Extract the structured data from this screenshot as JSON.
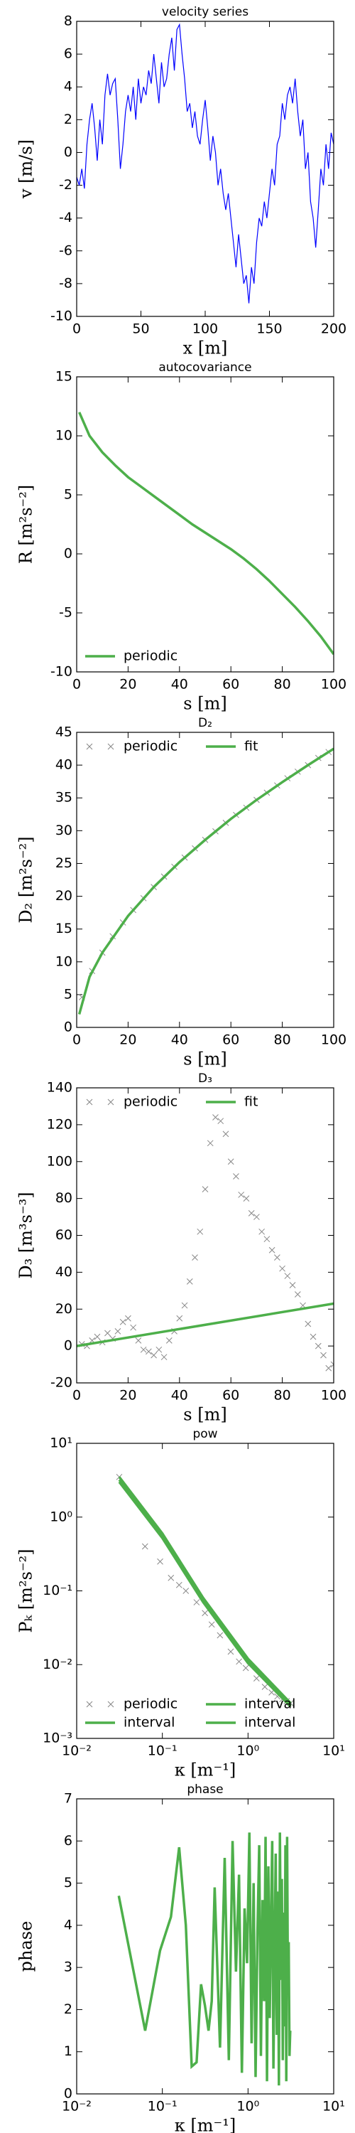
{
  "chart_data": [
    {
      "type": "line",
      "title": "velocity series",
      "xlabel": "x [m]",
      "ylabel": "v [m/s]",
      "xlim": [
        0,
        200
      ],
      "xticks": [
        0,
        50,
        100,
        150,
        200
      ],
      "ylim": [
        -10,
        8
      ],
      "yticks": [
        -10,
        -8,
        -6,
        -4,
        -2,
        0,
        2,
        4,
        6,
        8
      ],
      "series": [
        {
          "color": "#0000ff",
          "x": [
            0,
            2,
            4,
            6,
            8,
            10,
            12,
            14,
            16,
            18,
            20,
            22,
            24,
            26,
            28,
            30,
            32,
            34,
            36,
            38,
            40,
            42,
            44,
            46,
            48,
            50,
            52,
            54,
            56,
            58,
            60,
            62,
            64,
            66,
            68,
            70,
            72,
            74,
            76,
            78,
            80,
            82,
            84,
            86,
            88,
            90,
            92,
            94,
            96,
            98,
            100,
            102,
            104,
            106,
            108,
            110,
            112,
            114,
            116,
            118,
            120,
            122,
            124,
            126,
            128,
            130,
            132,
            134,
            136,
            138,
            140,
            142,
            144,
            146,
            148,
            150,
            152,
            154,
            156,
            158,
            160,
            162,
            164,
            166,
            168,
            170,
            172,
            174,
            176,
            178,
            180,
            182,
            184,
            186,
            188,
            190,
            192,
            194,
            196,
            198,
            200
          ],
          "values": [
            -1.5,
            -2,
            -1,
            -2.2,
            0.5,
            2,
            3,
            1.5,
            -0.5,
            2,
            0.5,
            3.5,
            4.8,
            3.5,
            4.2,
            4.5,
            2,
            -1,
            0.5,
            2.5,
            3.5,
            2.5,
            4,
            2,
            4.5,
            3,
            4,
            3.5,
            5,
            4.2,
            6,
            4.5,
            3,
            5.5,
            4,
            4.5,
            6,
            7,
            5,
            7.5,
            7.8,
            6,
            4.5,
            2.5,
            3,
            1.5,
            2.5,
            1,
            0.5,
            2,
            3.2,
            1.5,
            -0.5,
            1,
            0,
            -2,
            -1,
            -2.5,
            -3.5,
            -2.5,
            -4,
            -5.5,
            -7,
            -5,
            -6.5,
            -8,
            -7.5,
            -9.2,
            -7,
            -8,
            -5.5,
            -4,
            -4.5,
            -3,
            -4,
            -2.5,
            -1,
            -2,
            0.5,
            1,
            3,
            2,
            3.5,
            4,
            3,
            4.5,
            2.5,
            1,
            2,
            -1,
            0,
            -3,
            -4,
            -5.8,
            -3.5,
            -1,
            -2,
            0.5,
            -1,
            1.2,
            0.5
          ]
        }
      ]
    },
    {
      "type": "line",
      "title": "autocovariance",
      "xlabel": "s [m]",
      "ylabel": "R [m²s⁻²]",
      "xlim": [
        0,
        100
      ],
      "xticks": [
        0,
        20,
        40,
        60,
        80,
        100
      ],
      "ylim": [
        -10,
        15
      ],
      "yticks": [
        -10,
        -5,
        0,
        5,
        10,
        15
      ],
      "legend": "lower left",
      "legend_columns": 1,
      "series": [
        {
          "name": "periodic",
          "color": "#4daf4a",
          "x": [
            1,
            5,
            10,
            15,
            20,
            25,
            30,
            35,
            40,
            45,
            50,
            55,
            60,
            65,
            70,
            75,
            80,
            85,
            90,
            95,
            100
          ],
          "values": [
            12,
            10,
            8.6,
            7.5,
            6.5,
            5.7,
            4.9,
            4.1,
            3.3,
            2.5,
            1.8,
            1.1,
            0.4,
            -0.4,
            -1.3,
            -2.3,
            -3.4,
            -4.5,
            -5.7,
            -7,
            -8.5
          ]
        }
      ]
    },
    {
      "type": "line",
      "title": "D₂",
      "xlabel": "s [m]",
      "ylabel": "D₂ [m²s⁻²]",
      "xlim": [
        0,
        100
      ],
      "xticks": [
        0,
        20,
        40,
        60,
        80,
        100
      ],
      "ylim": [
        0,
        45
      ],
      "yticks": [
        0,
        5,
        10,
        15,
        20,
        25,
        30,
        35,
        40,
        45
      ],
      "legend": "upper center",
      "legend_columns": 2,
      "series": [
        {
          "name": "periodic",
          "color": "#888888",
          "marker": "x",
          "x": [
            2,
            6,
            10,
            14,
            18,
            22,
            26,
            30,
            34,
            38,
            42,
            46,
            50,
            54,
            58,
            62,
            66,
            70,
            74,
            78,
            82,
            86,
            90,
            94,
            98
          ],
          "values": [
            4.6,
            8.6,
            11.4,
            13.9,
            16,
            17.9,
            19.7,
            21.4,
            23,
            24.5,
            25.9,
            27.3,
            28.6,
            29.9,
            31.2,
            32.4,
            33.5,
            34.7,
            35.8,
            36.9,
            38,
            39,
            40,
            41.1,
            42
          ]
        },
        {
          "name": "fit",
          "color": "#4daf4a",
          "x": [
            1,
            5,
            10,
            20,
            30,
            40,
            50,
            60,
            70,
            80,
            90,
            100
          ],
          "values": [
            2,
            7.7,
            11.4,
            17,
            21.4,
            25.2,
            28.6,
            31.8,
            34.7,
            37.4,
            40,
            42.5
          ]
        }
      ]
    },
    {
      "type": "line",
      "title": "D₃",
      "xlabel": "s [m]",
      "ylabel": "D₃ [m³s⁻³]",
      "xlim": [
        0,
        100
      ],
      "xticks": [
        0,
        20,
        40,
        60,
        80,
        100
      ],
      "ylim": [
        -20,
        140
      ],
      "yticks": [
        -20,
        0,
        20,
        40,
        60,
        80,
        100,
        120,
        140
      ],
      "legend": "upper center",
      "legend_columns": 2,
      "series": [
        {
          "name": "periodic",
          "color": "#888888",
          "marker": "x",
          "x": [
            2,
            4,
            6,
            8,
            10,
            12,
            14,
            16,
            18,
            20,
            22,
            24,
            26,
            28,
            30,
            32,
            34,
            36,
            38,
            40,
            42,
            44,
            46,
            48,
            50,
            52,
            54,
            56,
            58,
            60,
            62,
            64,
            66,
            68,
            70,
            72,
            74,
            76,
            78,
            80,
            82,
            84,
            86,
            88,
            90,
            92,
            94,
            96,
            98,
            100
          ],
          "values": [
            1,
            0,
            3,
            5,
            2,
            7,
            4,
            8,
            13,
            15,
            10,
            3,
            -2,
            -3,
            -5,
            -2,
            -6,
            3,
            8,
            15,
            22,
            35,
            48,
            62,
            85,
            110,
            124,
            122,
            115,
            100,
            92,
            82,
            80,
            72,
            70,
            62,
            58,
            52,
            48,
            42,
            38,
            33,
            28,
            22,
            12,
            5,
            0,
            -5,
            -12,
            -10
          ]
        },
        {
          "name": "fit",
          "color": "#4daf4a",
          "x": [
            0,
            100
          ],
          "values": [
            0,
            23
          ]
        }
      ]
    },
    {
      "type": "line",
      "title": "pow",
      "xlabel": "κ [m⁻¹]",
      "ylabel": "Pₖ [m²s⁻²]",
      "xscale": "log",
      "yscale": "log",
      "xlim": [
        0.01,
        10
      ],
      "xticks": [
        {
          "value": 0.01,
          "label": "10⁻²"
        },
        {
          "value": 0.1,
          "label": "10⁻¹"
        },
        {
          "value": 1,
          "label": "10⁰"
        },
        {
          "value": 10,
          "label": "10¹"
        }
      ],
      "ylim": [
        0.001,
        10
      ],
      "yticks": [
        {
          "value": 0.001,
          "label": "10⁻³"
        },
        {
          "value": 0.01,
          "label": "10⁻²"
        },
        {
          "value": 0.1,
          "label": "10⁻¹"
        },
        {
          "value": 1,
          "label": "10⁰"
        },
        {
          "value": 10,
          "label": "10¹"
        }
      ],
      "legend": "lower center",
      "legend_columns": 2,
      "series": [
        {
          "name": "periodic",
          "color": "#888888",
          "marker": "x",
          "x": [
            0.0314,
            0.0628,
            0.0942,
            0.126,
            0.157,
            0.188,
            0.251,
            0.314,
            0.377,
            0.471,
            0.628,
            0.785,
            0.942,
            1.257,
            1.571,
            1.885,
            2.199,
            2.513,
            2.827,
            3.142
          ],
          "values": [
            3.5,
            0.4,
            0.25,
            0.15,
            0.12,
            0.1,
            0.07,
            0.05,
            0.035,
            0.025,
            0.015,
            0.011,
            0.009,
            0.0065,
            0.005,
            0.0042,
            0.0037,
            0.0034,
            0.0032,
            0.003
          ]
        },
        {
          "name": "interval",
          "color": "#4daf4a",
          "x": [
            0.0314,
            0.1,
            0.3,
            1,
            3.142
          ],
          "values": [
            3.5,
            0.6,
            0.08,
            0.012,
            0.003
          ]
        },
        {
          "name": "interval",
          "color": "#4daf4a",
          "x": [
            0.0314,
            0.1,
            0.3,
            1,
            3.142
          ],
          "values": [
            3.2,
            0.55,
            0.075,
            0.011,
            0.0028
          ]
        },
        {
          "name": "interval",
          "color": "#4daf4a",
          "x": [
            0.0314,
            0.1,
            0.3,
            1,
            3.142
          ],
          "values": [
            3,
            0.52,
            0.07,
            0.0105,
            0.0027
          ]
        }
      ]
    },
    {
      "type": "line",
      "title": "phase",
      "xlabel": "κ [m⁻¹]",
      "ylabel": "phase",
      "xscale": "log",
      "xlim": [
        0.01,
        10
      ],
      "xticks": [
        {
          "value": 0.01,
          "label": "10⁻²"
        },
        {
          "value": 0.1,
          "label": "10⁻¹"
        },
        {
          "value": 1,
          "label": "10⁰"
        },
        {
          "value": 10,
          "label": "10¹"
        }
      ],
      "ylim": [
        0,
        7
      ],
      "yticks": [
        0,
        1,
        2,
        3,
        4,
        5,
        6,
        7
      ],
      "series": [
        {
          "color": "#4daf4a",
          "x": [
            0.031,
            0.063,
            0.094,
            0.126,
            0.157,
            0.188,
            0.22,
            0.251,
            0.283,
            0.314,
            0.346,
            0.377,
            0.408,
            0.471,
            0.534,
            0.597,
            0.66,
            0.723,
            0.785,
            0.848,
            0.911,
            0.974,
            1.037,
            1.1,
            1.162,
            1.225,
            1.288,
            1.351,
            1.414,
            1.477,
            1.539,
            1.602,
            1.665,
            1.728,
            1.791,
            1.854,
            1.916,
            1.979,
            2.042,
            2.105,
            2.168,
            2.231,
            2.293,
            2.356,
            2.419,
            2.482,
            2.545,
            2.608,
            2.67,
            2.733,
            2.796,
            2.859,
            2.922,
            2.985,
            3.047,
            3.11
          ],
          "values": [
            4.7,
            1.5,
            3.4,
            4.2,
            5.85,
            4.0,
            0.65,
            0.75,
            2.6,
            2.1,
            1.5,
            2.2,
            4.9,
            1.1,
            5.6,
            0.8,
            6.0,
            2.9,
            5.2,
            0.5,
            4.4,
            3.1,
            6.2,
            1.2,
            5.0,
            0.4,
            3.8,
            5.9,
            0.9,
            4.6,
            2.2,
            6.1,
            0.3,
            5.4,
            1.8,
            4.1,
            6.0,
            0.6,
            3.3,
            5.7,
            1.4,
            4.8,
            0.2,
            6.2,
            2.7,
            5.1,
            0.8,
            4.3,
            1.6,
            5.9,
            0.3,
            6.1,
            2.4,
            3.6,
            0.9,
            1.5
          ]
        }
      ]
    }
  ]
}
